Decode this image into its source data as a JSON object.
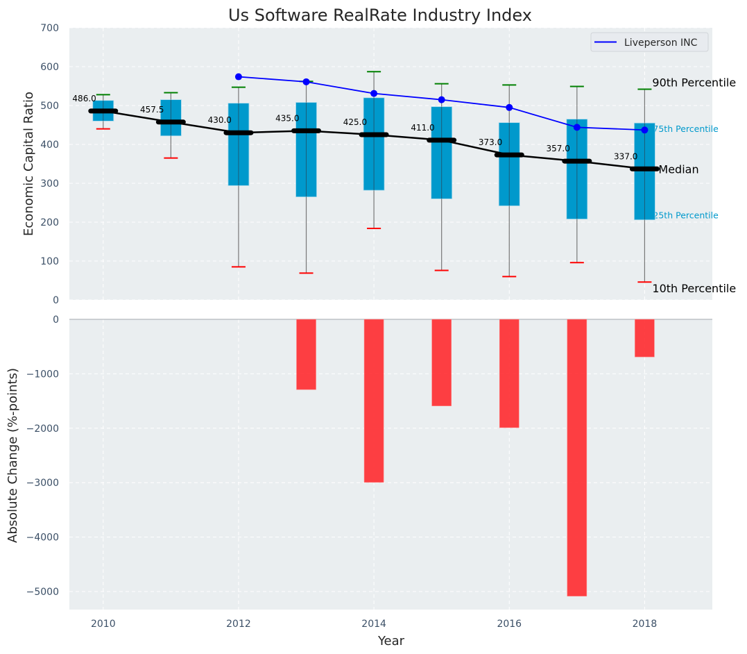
{
  "chart_data": [
    {
      "type": "box",
      "panel": "top",
      "title": "Us Software RealRate Industry Index",
      "xlabel": "",
      "ylabel": "Economic Capital Ratio",
      "ylim": [
        0,
        700
      ],
      "yticks": [
        0,
        100,
        200,
        300,
        400,
        500,
        600,
        700
      ],
      "xlim": [
        2009.5,
        2019
      ],
      "grid": true,
      "categories": [
        2010,
        2011,
        2012,
        2013,
        2014,
        2015,
        2016,
        2017,
        2018
      ],
      "series": [
        {
          "name": "10th Percentile",
          "color": "#ff0000",
          "values": [
            440,
            365,
            85,
            69,
            184,
            76,
            60,
            96,
            46
          ]
        },
        {
          "name": "25th Percentile",
          "color": "#0099cc",
          "values": [
            460,
            422,
            294,
            265,
            282,
            260,
            242,
            208,
            206
          ]
        },
        {
          "name": "Median",
          "color": "#000000",
          "values": [
            486.0,
            457.5,
            430.0,
            435.0,
            425.0,
            411.0,
            373.0,
            357.0,
            337.0
          ]
        },
        {
          "name": "75th Percentile",
          "color": "#0099cc",
          "values": [
            513,
            515,
            506,
            508,
            520,
            497,
            456,
            465,
            455
          ]
        },
        {
          "name": "90th Percentile",
          "color": "#008000",
          "values": [
            528,
            533,
            547,
            562,
            587,
            556,
            553,
            549,
            542
          ]
        },
        {
          "name": "Liveperson INC",
          "color": "#0000ff",
          "x": [
            2012,
            2013,
            2014,
            2015,
            2016,
            2017,
            2018
          ],
          "values": [
            574,
            561,
            531,
            515,
            495,
            444,
            437
          ]
        }
      ],
      "median_labels": [
        "486.0",
        "457.5",
        "430.0",
        "435.0",
        "425.0",
        "411.0",
        "373.0",
        "357.0",
        "337.0"
      ],
      "annotations": {
        "p90": "90th Percentile",
        "p75": "75th Percentile",
        "median": "Median",
        "p25": "25th Percentile",
        "p10": "10th Percentile"
      },
      "legend": {
        "entries": [
          "Liveperson INC"
        ],
        "placement": "top-right"
      }
    },
    {
      "type": "bar",
      "panel": "bottom",
      "xlabel": "Year",
      "ylabel": "Absolute Change (%-points)",
      "ylim": [
        -5350,
        0
      ],
      "yticks": [
        0,
        -1000,
        -2000,
        -3000,
        -4000,
        -5000
      ],
      "xticks": [
        2010,
        2012,
        2014,
        2016,
        2018
      ],
      "xlim": [
        2009.5,
        2019
      ],
      "grid": true,
      "color": "#ff2a2f",
      "categories": [
        2013,
        2014,
        2015,
        2016,
        2017,
        2018
      ],
      "values": [
        -1290,
        -2995,
        -1590,
        -1990,
        -5085,
        -690
      ]
    }
  ]
}
